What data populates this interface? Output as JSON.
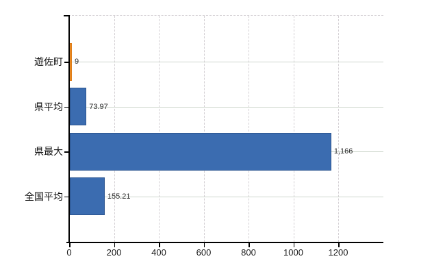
{
  "chart_data": {
    "type": "bar",
    "orientation": "horizontal",
    "title": "",
    "xlabel": "",
    "ylabel": "",
    "categories": [
      "遊佐町",
      "県平均",
      "県最大",
      "全国平均"
    ],
    "values": [
      9,
      73.97,
      1166,
      155.21
    ],
    "value_labels": [
      "9",
      "73.97",
      "1,166",
      "155.21"
    ],
    "series": [
      {
        "name": "value",
        "values": [
          9,
          73.97,
          1166,
          155.21
        ]
      }
    ],
    "x_ticks": [
      0,
      200,
      400,
      600,
      800,
      1000,
      1200
    ],
    "x_tick_labels": [
      "0",
      "200",
      "400",
      "600",
      "800",
      "1000",
      "1200"
    ],
    "xlim": [
      0,
      1400
    ],
    "grid": true,
    "legend": false,
    "bar_colors": [
      "#f89a2e",
      "#3b6cb0",
      "#3b6cb0",
      "#3b6cb0"
    ],
    "bar_border_colors": [
      "#dd7c18",
      "#2c5590",
      "#2c5590",
      "#2c5590"
    ]
  },
  "colors": {
    "background": "#ffffff",
    "axis": "#000000",
    "vertical_grid": "#d3cfd3",
    "horizontal_grid": "#cdd6cc",
    "bar_blue": "#3b6cb0",
    "bar_orange": "#f89a2e",
    "text": "#1a1a1a"
  }
}
